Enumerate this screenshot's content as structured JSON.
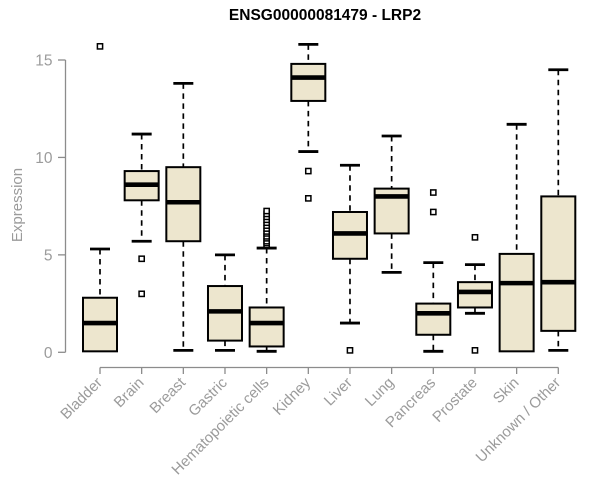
{
  "title": "ENSG00000081479 - LRP2",
  "colors": {
    "background": "#FFFFFF",
    "box_fill": "#EDE6CE",
    "box_border": "#000000",
    "median": "#000000",
    "whisker": "#000000",
    "axis_line": "#8C8C8C",
    "tick_label": "#9B9B9B",
    "title": "#000000"
  },
  "chart_data": {
    "type": "boxplot",
    "title": "ENSG00000081479 - LRP2",
    "xlabel": "",
    "ylabel": "Expression",
    "ylim": [
      0,
      15.9
    ],
    "yticks": [
      0,
      5,
      10,
      15
    ],
    "grid": false,
    "legend": "none",
    "categories": [
      "Bladder",
      "Brain",
      "Breast",
      "Gastric",
      "Hematopoietic cells",
      "Kidney",
      "Liver",
      "Lung",
      "Pancreas",
      "Prostate",
      "Skin",
      "Unknown / Other"
    ],
    "series": [
      {
        "name": "Bladder",
        "whisker_low": 0.05,
        "q1": 0.05,
        "median": 1.5,
        "q3": 2.8,
        "whisker_high": 5.3,
        "outliers": [
          15.7
        ]
      },
      {
        "name": "Brain",
        "whisker_low": 5.7,
        "q1": 7.8,
        "median": 8.6,
        "q3": 9.3,
        "whisker_high": 11.2,
        "outliers": [
          4.8,
          3.0
        ]
      },
      {
        "name": "Breast",
        "whisker_low": 0.1,
        "q1": 5.7,
        "median": 7.7,
        "q3": 9.5,
        "whisker_high": 13.8,
        "outliers": []
      },
      {
        "name": "Gastric",
        "whisker_low": 0.1,
        "q1": 0.6,
        "median": 2.1,
        "q3": 3.4,
        "whisker_high": 5.0,
        "outliers": []
      },
      {
        "name": "Hematopoietic cells",
        "whisker_low": 0.05,
        "q1": 0.3,
        "median": 1.5,
        "q3": 2.3,
        "whisker_high": 5.35,
        "outliers": [
          5.5,
          5.6,
          5.7,
          5.85,
          5.95,
          6.1,
          6.2,
          6.35,
          6.5,
          6.65,
          6.8,
          6.95,
          7.1,
          7.25
        ]
      },
      {
        "name": "Kidney",
        "whisker_low": 10.3,
        "q1": 12.9,
        "median": 14.1,
        "q3": 14.8,
        "whisker_high": 15.8,
        "outliers": [
          9.3,
          7.9
        ]
      },
      {
        "name": "Liver",
        "whisker_low": 1.5,
        "q1": 4.8,
        "median": 6.1,
        "q3": 7.2,
        "whisker_high": 9.6,
        "outliers": [
          0.1
        ]
      },
      {
        "name": "Lung",
        "whisker_low": 4.1,
        "q1": 6.1,
        "median": 8.0,
        "q3": 8.4,
        "whisker_high": 11.1,
        "outliers": []
      },
      {
        "name": "Pancreas",
        "whisker_low": 0.05,
        "q1": 0.9,
        "median": 2.0,
        "q3": 2.5,
        "whisker_high": 4.6,
        "outliers": [
          8.2,
          7.2
        ]
      },
      {
        "name": "Prostate",
        "whisker_low": 2.0,
        "q1": 2.3,
        "median": 3.1,
        "q3": 3.6,
        "whisker_high": 4.5,
        "outliers": [
          5.9,
          0.1
        ]
      },
      {
        "name": "Skin",
        "whisker_low": 0.05,
        "q1": 0.05,
        "median": 3.55,
        "q3": 5.05,
        "whisker_high": 11.7,
        "outliers": []
      },
      {
        "name": "Unknown / Other",
        "whisker_low": 0.1,
        "q1": 1.1,
        "median": 3.6,
        "q3": 8.0,
        "whisker_high": 14.5,
        "outliers": []
      }
    ]
  }
}
